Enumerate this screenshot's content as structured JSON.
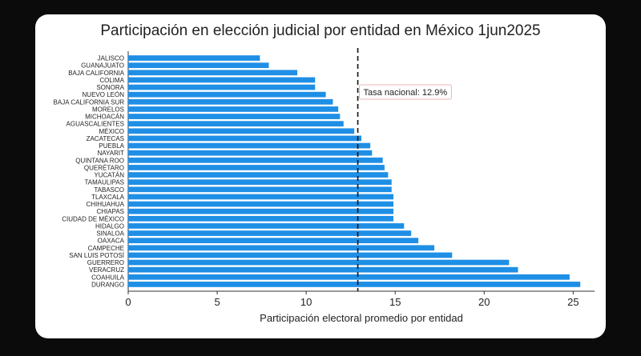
{
  "chart_data": {
    "type": "bar",
    "orientation": "horizontal",
    "title": "Participación en elección judicial por entidad en México 1jun2025",
    "xlabel": "Participación electoral promedio por entidad",
    "ylabel": "",
    "xlim": [
      0,
      26.2
    ],
    "xticks": [
      0,
      5,
      10,
      15,
      20,
      25
    ],
    "categories": [
      "JALISCO",
      "GUANAJUATO",
      "BAJA CALIFORNIA",
      "COLIMA",
      "SONORA",
      "NUEVO LEÓN",
      "BAJA CALIFORNIA SUR",
      "MORELOS",
      "MICHOACÁN",
      "AGUASCALIENTES",
      "MÉXICO",
      "ZACATECAS",
      "PUEBLA",
      "NAYARIT",
      "QUINTANA ROO",
      "QUERÉTARO",
      "YUCATÁN",
      "TAMAULIPAS",
      "TABASCO",
      "TLAXCALA",
      "CHIHUAHUA",
      "CHIAPAS",
      "CIUDAD DE MÉXICO",
      "HIDALGO",
      "SINALOA",
      "OAXACA",
      "CAMPECHE",
      "SAN LUIS POTOSÍ",
      "GUERRERO",
      "VERACRUZ",
      "COAHUILA",
      "DURANGO"
    ],
    "values": [
      7.4,
      7.9,
      9.5,
      10.5,
      10.5,
      11.1,
      11.5,
      11.8,
      11.9,
      12.1,
      12.7,
      13.1,
      13.6,
      13.7,
      14.3,
      14.4,
      14.6,
      14.8,
      14.8,
      14.9,
      14.9,
      14.9,
      14.9,
      15.5,
      15.9,
      16.3,
      17.2,
      18.2,
      21.4,
      21.9,
      24.8,
      25.4
    ],
    "bar_color": "#1f8fe6",
    "reference_line": {
      "value": 12.9,
      "label": "Tasa nacional: 12.9%",
      "style": "dashed"
    },
    "grid": false,
    "legend": "none"
  }
}
